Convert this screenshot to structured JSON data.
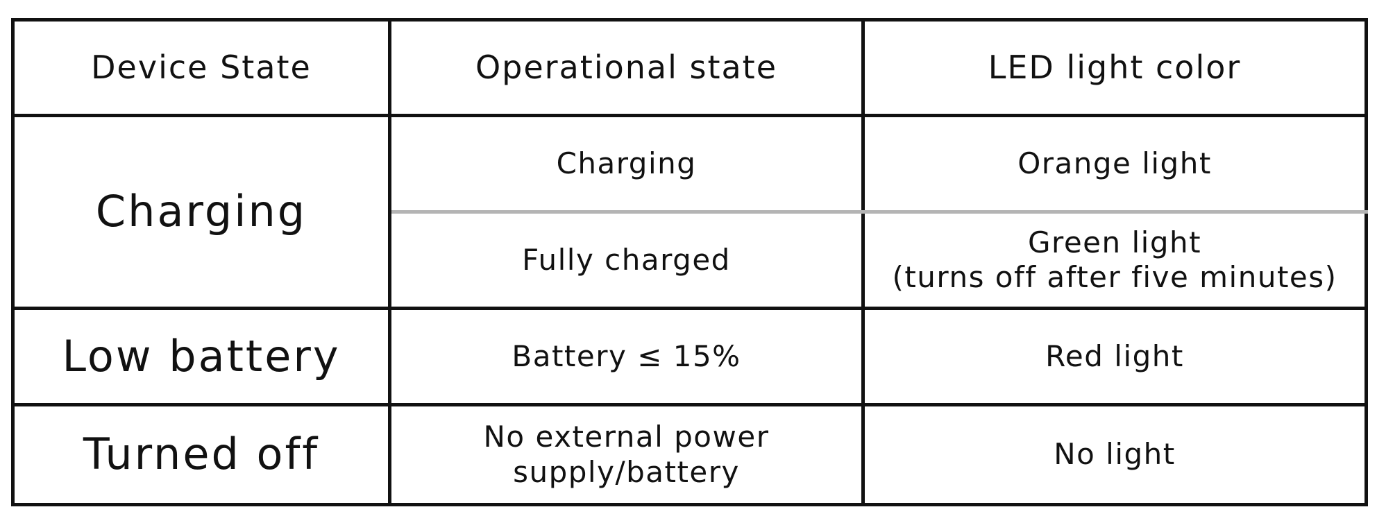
{
  "table": {
    "headers": [
      "Device State",
      "Operational state",
      "LED light color"
    ],
    "rows": [
      {
        "device_state": "Charging",
        "entries": [
          {
            "operational_state": [
              "Charging"
            ],
            "led_color": [
              "Orange light"
            ]
          },
          {
            "operational_state": [
              "Fully charged"
            ],
            "led_color": [
              "Green light",
              "(turns off after five minutes)"
            ]
          }
        ]
      },
      {
        "device_state": "Low battery",
        "entries": [
          {
            "operational_state": [
              "Battery ≤ 15%"
            ],
            "led_color": [
              "Red light"
            ]
          }
        ]
      },
      {
        "device_state": "Turned off",
        "entries": [
          {
            "operational_state": [
              "No external power",
              "supply/battery"
            ],
            "led_color": [
              "No light"
            ]
          }
        ]
      }
    ]
  }
}
